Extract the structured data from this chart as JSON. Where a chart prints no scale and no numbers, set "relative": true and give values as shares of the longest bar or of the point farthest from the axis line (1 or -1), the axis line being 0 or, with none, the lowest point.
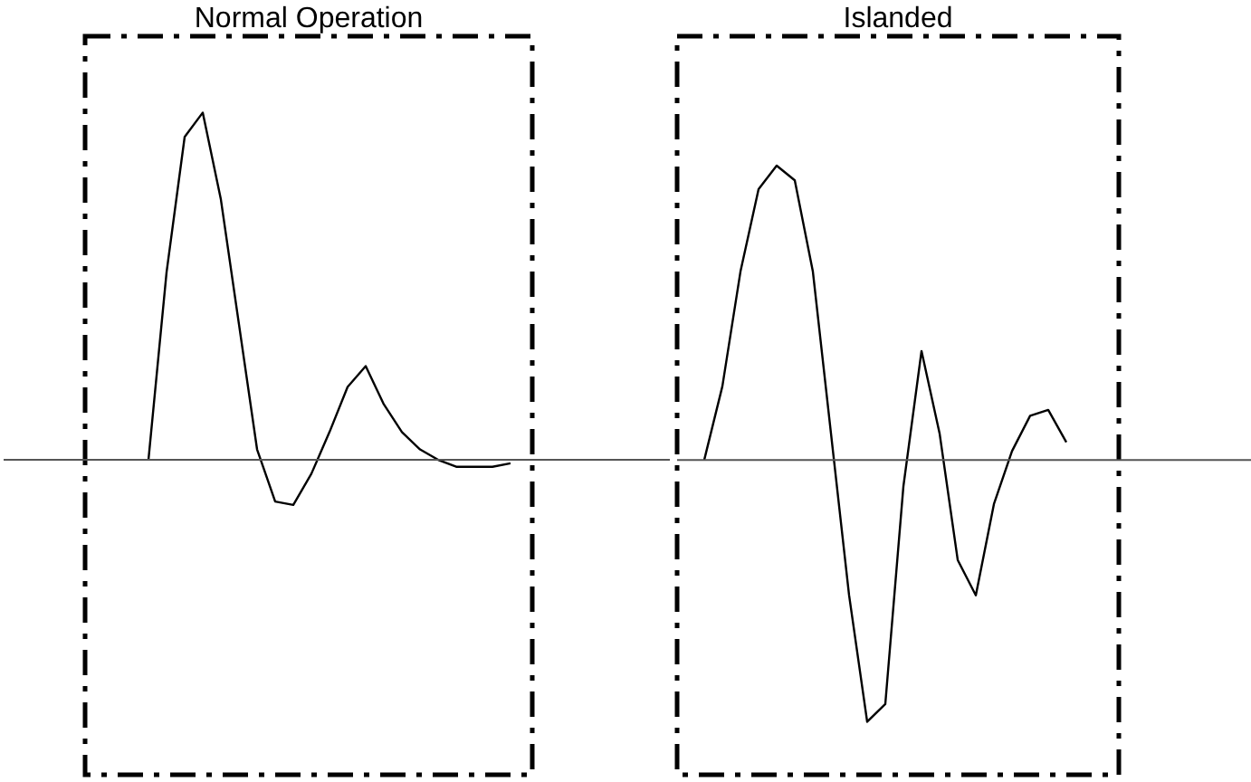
{
  "chart_data": [
    {
      "type": "line",
      "title": "Normal Operation",
      "relative": true,
      "categories": [
        null,
        null,
        null,
        null,
        null,
        null,
        null,
        null,
        null,
        null,
        null,
        null,
        null,
        null,
        null,
        null,
        null,
        null,
        null,
        null,
        null
      ],
      "series": [
        {
          "color": "#000000",
          "values": [
            0,
            0.54,
            0.93,
            1,
            0.75,
            0.39,
            0.03,
            -0.12,
            -0.13,
            -0.04,
            0.08,
            0.21,
            0.27,
            0.16,
            0.08,
            0.03,
            0,
            -0.02,
            -0.02,
            -0.02,
            -0.01
          ]
        }
      ]
    },
    {
      "type": "line",
      "title": "Islanded",
      "relative": true,
      "categories": [
        null,
        null,
        null,
        null,
        null,
        null,
        null,
        null,
        null,
        null,
        null,
        null,
        null,
        null,
        null,
        null,
        null,
        null,
        null,
        null,
        null
      ],
      "series": [
        {
          "color": "#000000",
          "values": [
            0,
            0.25,
            0.64,
            0.92,
            1,
            0.95,
            0.64,
            0.09,
            -0.46,
            -0.89,
            -0.83,
            -0.09,
            0.37,
            0.09,
            -0.34,
            -0.46,
            -0.15,
            0.03,
            0.15,
            0.17,
            0.06
          ]
        }
      ]
    }
  ]
}
